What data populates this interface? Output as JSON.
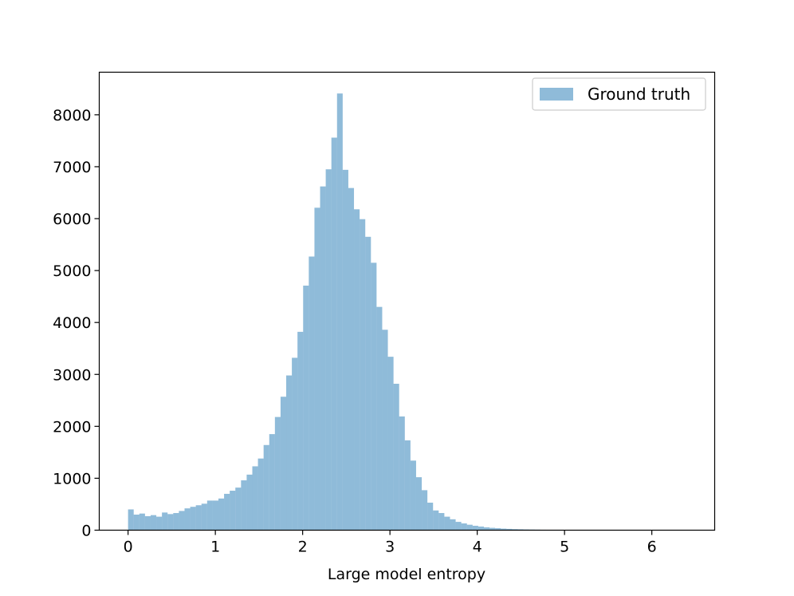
{
  "chart_data": {
    "type": "bar",
    "xlabel": "Large model entropy",
    "ylabel": "",
    "xlim": [
      -0.33,
      6.72
    ],
    "ylim": [
      0,
      8820
    ],
    "xticks": [
      0,
      1,
      2,
      3,
      4,
      5,
      6
    ],
    "xtick_labels": [
      "0",
      "1",
      "2",
      "3",
      "4",
      "5",
      "6"
    ],
    "yticks": [
      0,
      1000,
      2000,
      3000,
      4000,
      5000,
      6000,
      7000,
      8000
    ],
    "ytick_labels": [
      "0",
      "1000",
      "2000",
      "3000",
      "4000",
      "5000",
      "6000",
      "7000",
      "8000"
    ],
    "grid": false,
    "legend_position": "top-right",
    "bar_color": "#1f77b4",
    "bar_alpha": 0.5,
    "bin_start": 0.0,
    "bin_width": 0.0647,
    "series": [
      {
        "name": "Ground truth",
        "values": [
          400,
          300,
          320,
          270,
          290,
          260,
          340,
          310,
          330,
          370,
          420,
          450,
          480,
          510,
          570,
          570,
          610,
          700,
          760,
          820,
          960,
          1070,
          1230,
          1380,
          1640,
          1850,
          2180,
          2570,
          2980,
          3320,
          3820,
          4710,
          5270,
          6210,
          6620,
          6950,
          7560,
          8410,
          6940,
          6590,
          6180,
          5990,
          5650,
          5150,
          4300,
          3860,
          3340,
          2820,
          2190,
          1730,
          1340,
          1020,
          770,
          530,
          380,
          330,
          260,
          210,
          160,
          130,
          105,
          85,
          70,
          55,
          45,
          38,
          30,
          25,
          20,
          17,
          14,
          12,
          10,
          8,
          7,
          6,
          5,
          4,
          4,
          3,
          3,
          2,
          2,
          2,
          2,
          1,
          1,
          1,
          1,
          1,
          1,
          1,
          1,
          1,
          1,
          1,
          1,
          1,
          1,
          1
        ]
      }
    ]
  }
}
